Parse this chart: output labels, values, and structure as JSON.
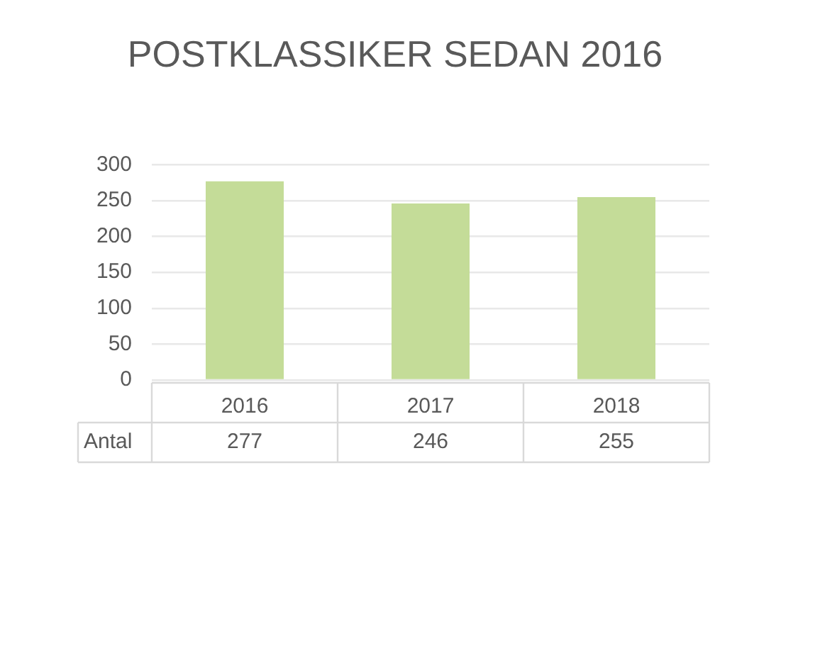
{
  "chart_data": {
    "type": "bar",
    "title": "POSTKLASSIKER SEDAN 2016",
    "categories": [
      "2016",
      "2017",
      "2018"
    ],
    "series": [
      {
        "name": "Antal",
        "color": "#c4dc98",
        "values": [
          277,
          246,
          255
        ]
      }
    ],
    "ylim": [
      0,
      300
    ],
    "yticks": [
      0,
      50,
      100,
      150,
      200,
      250,
      300
    ],
    "grid": "y",
    "data_labels": true
  }
}
